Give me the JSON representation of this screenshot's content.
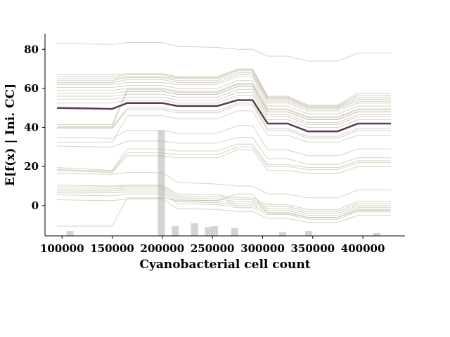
{
  "chart_data": {
    "type": "line",
    "subtype": "individual-conditional-expectation",
    "title": "",
    "xlabel": "Cyanobacterial cell count",
    "ylabel": "E[f(x) | Ini. CC]",
    "xlim": [
      83000,
      442000
    ],
    "ylim": [
      -15.5,
      88
    ],
    "x": [
      95000,
      150000,
      165000,
      200000,
      215000,
      255000,
      275000,
      290000,
      305000,
      325000,
      345000,
      375000,
      395000,
      428000
    ],
    "xticks": [
      100000,
      150000,
      200000,
      250000,
      300000,
      350000,
      400000
    ],
    "xtick_labels": [
      "100000",
      "150000",
      "200000",
      "250000",
      "300000",
      "350000",
      "400000"
    ],
    "yticks": [
      0,
      20,
      40,
      60,
      80
    ],
    "ytick_labels": [
      "0",
      "20",
      "40",
      "60",
      "80"
    ],
    "grid": false,
    "legend": "none",
    "colors": {
      "ice": "#b5ad8f",
      "mean": "#5a3a4f",
      "rug": "#cccccc"
    },
    "mean_series": {
      "values": [
        50,
        49.5,
        52.5,
        52.5,
        51,
        51,
        54,
        54,
        42,
        42,
        38,
        38,
        42,
        42
      ]
    },
    "ice_series": [
      {
        "values": [
          83,
          82.5,
          83.5,
          83.5,
          81.5,
          81,
          80,
          80,
          76.5,
          76.5,
          74,
          74,
          78,
          78
        ]
      },
      {
        "values": [
          67,
          67,
          67.5,
          67.5,
          66,
          66,
          70,
          70,
          56,
          56,
          51.5,
          51.5,
          57.5,
          57.5
        ]
      },
      {
        "values": [
          66,
          66,
          67,
          67,
          65.5,
          65.5,
          69.5,
          69.5,
          55.5,
          55.5,
          51,
          51,
          56.5,
          56.5
        ]
      },
      {
        "values": [
          65,
          65,
          66,
          66,
          65,
          65,
          69,
          69,
          55,
          55,
          50.5,
          50.5,
          55.5,
          55.5
        ]
      },
      {
        "values": [
          64,
          64,
          65.5,
          65.5,
          64,
          64,
          68,
          68,
          54.5,
          54.5,
          50,
          50,
          54.5,
          54.5
        ]
      },
      {
        "values": [
          63,
          63,
          64.5,
          64.5,
          63,
          63,
          67,
          67,
          53.5,
          53.5,
          49.5,
          49.5,
          53.5,
          53.5
        ]
      },
      {
        "values": [
          62,
          62,
          63,
          63,
          62,
          62,
          66,
          66,
          52.5,
          52.5,
          48.5,
          48.5,
          52.5,
          52.5
        ]
      },
      {
        "values": [
          60.5,
          60.5,
          61.5,
          61.5,
          60,
          60,
          64,
          64,
          51,
          51,
          47,
          47,
          51,
          51
        ]
      },
      {
        "values": [
          59,
          59,
          60,
          60,
          58.5,
          58.5,
          62.5,
          62.5,
          49.5,
          49.5,
          45.5,
          45.5,
          49.5,
          49.5
        ]
      },
      {
        "values": [
          57.5,
          57.5,
          58.5,
          58.5,
          57,
          57,
          61,
          61,
          48,
          48,
          44,
          44,
          48,
          48
        ]
      },
      {
        "values": [
          56,
          56,
          57,
          57,
          55.5,
          55.5,
          59.5,
          59.5,
          46.5,
          46.5,
          42.5,
          42.5,
          46.5,
          46.5
        ]
      },
      {
        "values": [
          54.5,
          54.5,
          55.5,
          55.5,
          54,
          54,
          58,
          58,
          45.5,
          45.5,
          41.5,
          41.5,
          45.5,
          45.5
        ]
      },
      {
        "values": [
          52.5,
          52.5,
          54,
          54,
          52.5,
          52.5,
          56.5,
          56.5,
          44,
          44,
          40,
          40,
          44,
          44
        ]
      },
      {
        "values": [
          41.5,
          41.5,
          59.5,
          59.5,
          58,
          58,
          62,
          62,
          49,
          49,
          45,
          45,
          49,
          49
        ]
      },
      {
        "values": [
          40.5,
          40.5,
          58.5,
          58.5,
          57,
          57,
          61,
          61,
          48,
          48,
          44,
          44,
          48,
          48
        ]
      },
      {
        "values": [
          40,
          40,
          50,
          50,
          48.5,
          48.5,
          52.5,
          52.5,
          39.5,
          39.5,
          35.5,
          35.5,
          39.5,
          39.5
        ]
      },
      {
        "values": [
          39.5,
          39.5,
          49,
          49,
          47.5,
          47.5,
          51.5,
          51.5,
          38.5,
          38.5,
          34.5,
          34.5,
          38.5,
          38.5
        ]
      },
      {
        "values": [
          35,
          34.5,
          38.5,
          38.5,
          37,
          37,
          41,
          41,
          28.5,
          28.5,
          25.5,
          25.5,
          29,
          29
        ]
      },
      {
        "values": [
          32.5,
          32.5,
          46,
          46,
          44.5,
          44.5,
          48.5,
          48.5,
          36,
          36,
          32.5,
          32.5,
          36,
          36
        ]
      },
      {
        "values": [
          30.5,
          30,
          33,
          33,
          32,
          32,
          35,
          35,
          24,
          24,
          21,
          21,
          24.5,
          24.5
        ]
      },
      {
        "values": [
          19.5,
          18,
          29,
          29,
          28,
          28,
          31.5,
          31.5,
          21,
          21,
          19.5,
          19.5,
          23,
          23
        ]
      },
      {
        "values": [
          18.5,
          17.5,
          27,
          27,
          26,
          26,
          30,
          30,
          20,
          20,
          18.5,
          18.5,
          22,
          22
        ]
      },
      {
        "values": [
          18,
          17,
          25.5,
          25.5,
          24.5,
          24.5,
          28.5,
          28.5,
          18,
          18,
          16.5,
          16.5,
          20,
          20
        ]
      },
      {
        "values": [
          16.5,
          16,
          17,
          17,
          12,
          11,
          10,
          10,
          6,
          6,
          4,
          4,
          8,
          8
        ]
      },
      {
        "values": [
          10.5,
          10,
          10.5,
          10.5,
          6,
          5.5,
          4,
          4,
          0.5,
          0.5,
          -2,
          -2,
          2,
          2
        ]
      },
      {
        "values": [
          9.5,
          9.5,
          10,
          10,
          5,
          4.5,
          3,
          3,
          -0.5,
          -0.5,
          -3,
          -3,
          1,
          1
        ]
      },
      {
        "values": [
          8.5,
          8.5,
          9,
          9,
          4,
          3.5,
          2,
          2,
          -1.5,
          -1.5,
          -4,
          -4,
          0,
          0
        ]
      },
      {
        "values": [
          7.5,
          7.5,
          8,
          8,
          3,
          2.5,
          1,
          1,
          -2.5,
          -2.5,
          -5,
          -5,
          -1,
          -1
        ]
      },
      {
        "values": [
          6.5,
          6.5,
          7,
          7,
          2,
          1.5,
          0,
          0,
          -3.5,
          -3.5,
          -6,
          -6,
          -2,
          -2
        ]
      },
      {
        "values": [
          5.5,
          5,
          6,
          6,
          1,
          0.5,
          -1,
          -1,
          -4.5,
          -4.5,
          -7,
          -7,
          -3,
          -3
        ]
      },
      {
        "values": [
          3,
          2.5,
          3.5,
          3.5,
          -1.5,
          -2,
          -3,
          -3,
          -6.5,
          -6.5,
          -8.5,
          -8.5,
          -5,
          -5
        ]
      },
      {
        "values": [
          -10.5,
          -10.5,
          4,
          4,
          2.5,
          2.5,
          6,
          6,
          -4,
          -4,
          -6,
          -6,
          -2.5,
          -2.5
        ]
      }
    ],
    "rug": [
      {
        "x": 108000,
        "height": 2.5
      },
      {
        "x": 199000,
        "height": 54
      },
      {
        "x": 213000,
        "height": 5
      },
      {
        "x": 232000,
        "height": 6.5
      },
      {
        "x": 246000,
        "height": 4.5
      },
      {
        "x": 252000,
        "height": 5
      },
      {
        "x": 272000,
        "height": 4
      },
      {
        "x": 320000,
        "height": 2
      },
      {
        "x": 346000,
        "height": 2.5
      },
      {
        "x": 414000,
        "height": 1.5
      }
    ]
  }
}
